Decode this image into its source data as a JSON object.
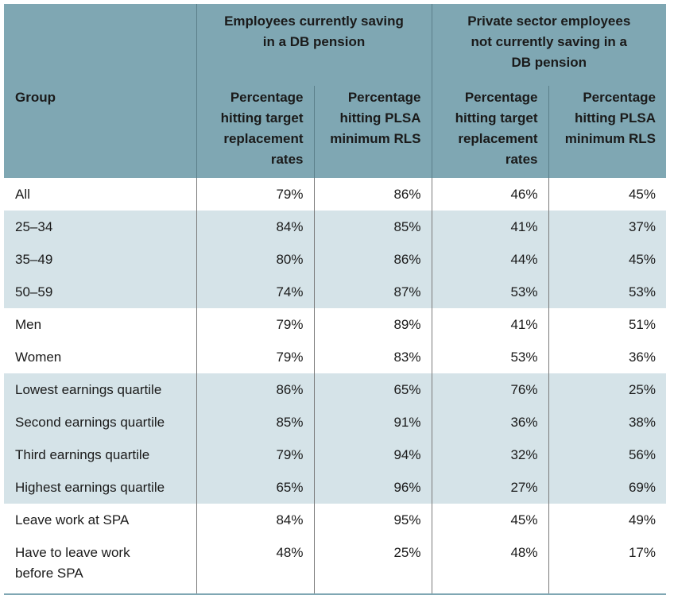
{
  "header": {
    "group_db": "Employees currently saving in a DB pension",
    "group_private": "Private sector employees not currently saving in a DB pension",
    "group_col": "Group",
    "col_target_1": "Percentage hitting target replacement rates",
    "col_plsa_1": "Percentage hitting PLSA minimum RLS",
    "col_target_2": "Percentage hitting target replacement rates",
    "col_plsa_2": "Percentage hitting PLSA minimum RLS"
  },
  "rows": [
    {
      "group": "All",
      "v": [
        "79%",
        "86%",
        "46%",
        "45%"
      ]
    },
    {
      "group": "25–34",
      "v": [
        "84%",
        "85%",
        "41%",
        "37%"
      ]
    },
    {
      "group": "35–49",
      "v": [
        "80%",
        "86%",
        "44%",
        "45%"
      ]
    },
    {
      "group": "50–59",
      "v": [
        "74%",
        "87%",
        "53%",
        "53%"
      ]
    },
    {
      "group": "Men",
      "v": [
        "79%",
        "89%",
        "41%",
        "51%"
      ]
    },
    {
      "group": "Women",
      "v": [
        "79%",
        "83%",
        "53%",
        "36%"
      ]
    },
    {
      "group": "Lowest earnings quartile",
      "v": [
        "86%",
        "65%",
        "76%",
        "25%"
      ]
    },
    {
      "group": "Second earnings quartile",
      "v": [
        "85%",
        "91%",
        "36%",
        "38%"
      ]
    },
    {
      "group": "Third earnings quartile",
      "v": [
        "79%",
        "94%",
        "32%",
        "56%"
      ]
    },
    {
      "group": "Highest earnings quartile",
      "v": [
        "65%",
        "96%",
        "27%",
        "69%"
      ]
    },
    {
      "group": "Leave work at SPA",
      "v": [
        "84%",
        "95%",
        "45%",
        "49%"
      ]
    },
    {
      "group": "Have to leave work before SPA",
      "v": [
        "48%",
        "25%",
        "48%",
        "17%"
      ]
    }
  ],
  "colors": {
    "header": "#7fa7b3",
    "shade": "#d5e3e8"
  }
}
